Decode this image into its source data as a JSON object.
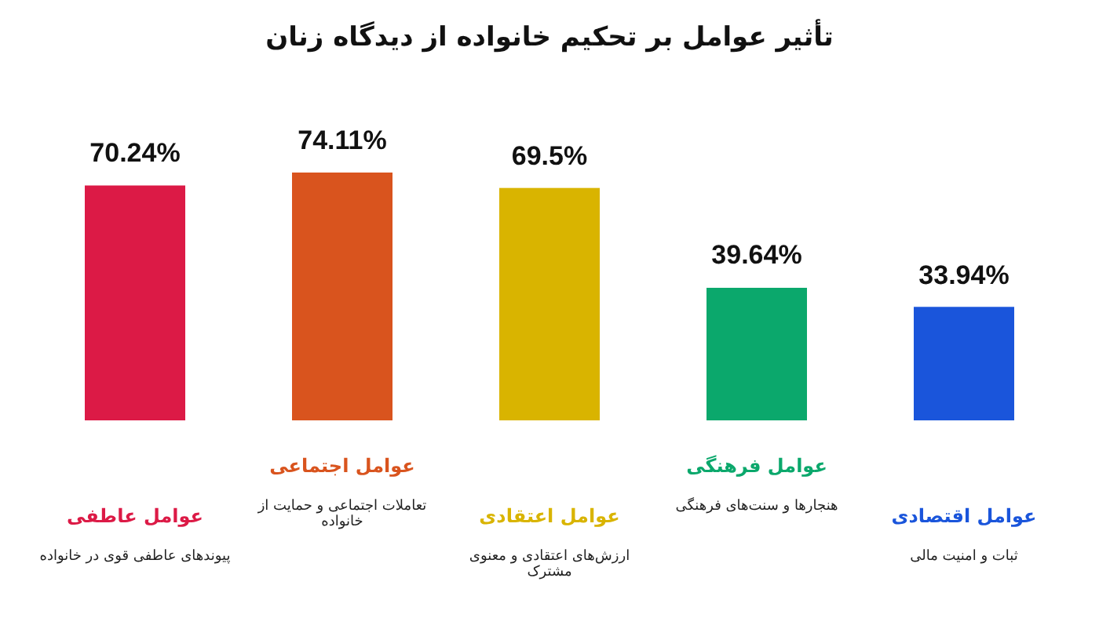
{
  "chart_data": {
    "type": "bar",
    "title": "تأثیر عوامل بر تحکیم خانواده از دیدگاه زنان",
    "categories": [
      "عوامل عاطفی",
      "عوامل اجتماعی",
      "عوامل اعتقادی",
      "عوامل فرهنگی",
      "عوامل اقتصادی"
    ],
    "values": [
      70.24,
      74.11,
      69.5,
      39.64,
      33.94
    ],
    "value_labels": [
      "70.24%",
      "74.11%",
      "69.5%",
      "39.64%",
      "33.94%"
    ],
    "colors": [
      "#dc1a46",
      "#d9541e",
      "#d9b400",
      "#0ba86c",
      "#1a55db"
    ],
    "annotations": [
      "پیوندهای عاطفی قوی در خانواده",
      "تعاملات اجتماعی و حمایت از خانواده",
      "ارزش‌های اعتقادی و معنوی مشترک",
      "هنجارها و سنت‌های فرهنگی",
      "ثبات و امنیت مالی"
    ]
  }
}
